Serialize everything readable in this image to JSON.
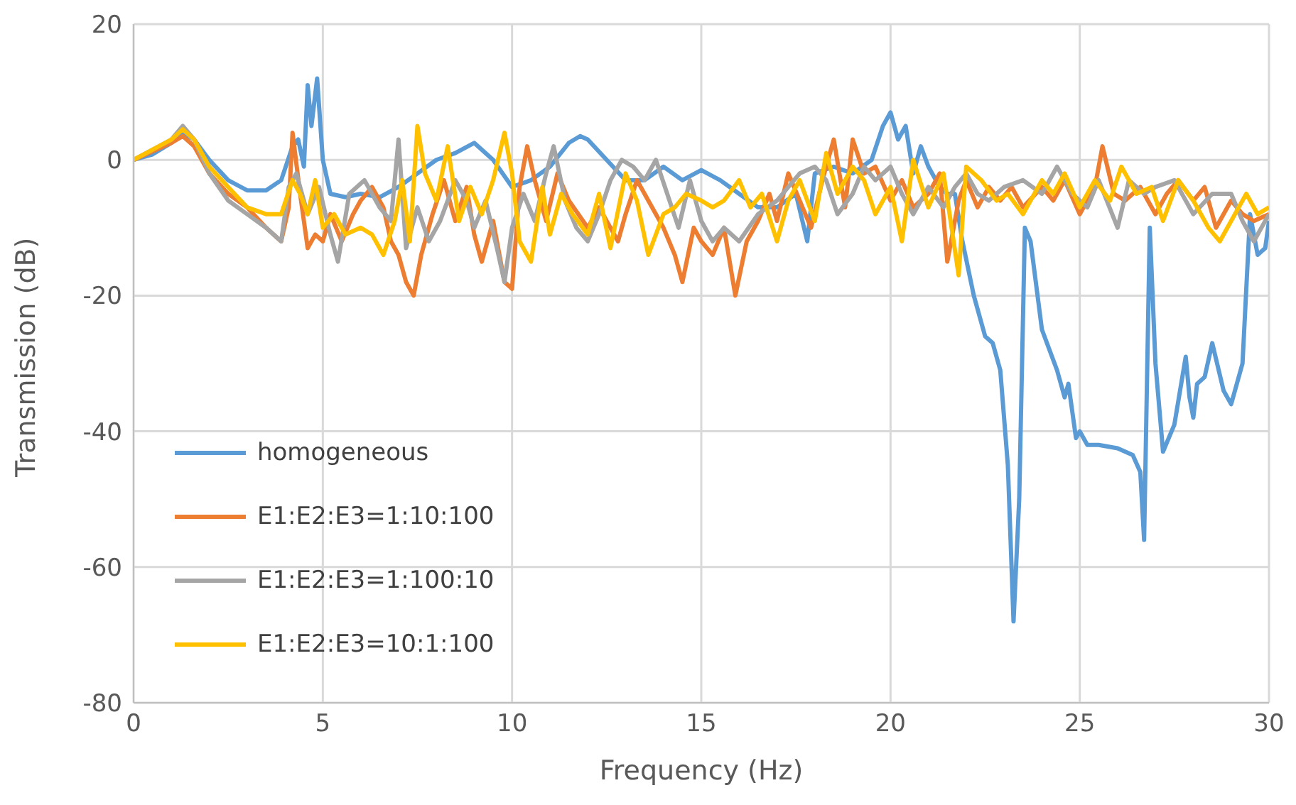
{
  "chart_data": {
    "type": "line",
    "xlabel": "Frequency (Hz)",
    "ylabel": "Transmission (dB)",
    "xlim": [
      0,
      30
    ],
    "xticks": [
      0,
      5,
      10,
      15,
      20,
      25,
      30
    ],
    "ylim": [
      -80,
      20
    ],
    "yticks": [
      -80,
      -60,
      -40,
      -20,
      0,
      20
    ],
    "grid": true,
    "legend": "bottom left",
    "marker": "none",
    "line_style": "solid",
    "series": [
      {
        "name": "homogeneous",
        "color": "#5b9bd5",
        "x": [
          0,
          0.5,
          1,
          1.3,
          1.6,
          2,
          2.5,
          3,
          3.5,
          3.9,
          4.2,
          4.35,
          4.5,
          4.6,
          4.7,
          4.85,
          5,
          5.2,
          5.6,
          6,
          6.5,
          7,
          7.5,
          8,
          8.5,
          9,
          9.5,
          10,
          10.5,
          11,
          11.5,
          11.8,
          12,
          12.5,
          13,
          13.5,
          14,
          14.5,
          15,
          15.5,
          16,
          16.5,
          17,
          17.5,
          17.8,
          18,
          18.5,
          19,
          19.5,
          19.8,
          20,
          20.2,
          20.4,
          20.6,
          20.8,
          21,
          21.3,
          21.5,
          21.7,
          21.9,
          22.2,
          22.5,
          22.7,
          22.9,
          23.1,
          23.25,
          23.4,
          23.55,
          23.7,
          24,
          24.4,
          24.6,
          24.7,
          24.9,
          25,
          25.2,
          25.5,
          26,
          26.4,
          26.6,
          26.7,
          26.85,
          27,
          27.2,
          27.5,
          27.8,
          27.9,
          28,
          28.1,
          28.3,
          28.5,
          28.8,
          29,
          29.3,
          29.5,
          29.7,
          29.9,
          30
        ],
        "values": [
          0,
          0.8,
          2.5,
          4,
          3,
          0,
          -3,
          -4.5,
          -4.5,
          -3,
          2,
          3,
          -1,
          11,
          5,
          12,
          0,
          -5,
          -5.5,
          -5,
          -5.5,
          -4,
          -2,
          0,
          1,
          2.5,
          0,
          -4,
          -3,
          -1,
          2.5,
          3.5,
          3,
          0,
          -3,
          -3,
          -1,
          -3,
          -1.5,
          -3,
          -5,
          -7,
          -7,
          -5,
          -12,
          -2,
          -1,
          -2,
          0,
          5,
          7,
          3,
          5,
          -2,
          2,
          -1,
          -4,
          -5,
          -5,
          -12,
          -20,
          -26,
          -27,
          -31,
          -45,
          -68,
          -50,
          -10,
          -12,
          -25,
          -31,
          -35,
          -33,
          -41,
          -40,
          -42,
          -42,
          -42.5,
          -43.5,
          -46,
          -56,
          -10,
          -30,
          -43,
          -39,
          -29,
          -35,
          -38,
          -33,
          -32,
          -27,
          -34,
          -36,
          -30,
          -8,
          -14,
          -13,
          -9
        ]
      },
      {
        "name": "E1:E2:E3=1:10:100",
        "color": "#ed7d31",
        "x": [
          0,
          1,
          1.3,
          1.6,
          2,
          2.5,
          3,
          3.5,
          3.9,
          4.1,
          4.2,
          4.4,
          4.6,
          4.8,
          5,
          5.2,
          5.5,
          5.8,
          6,
          6.3,
          6.6,
          6.8,
          7,
          7.2,
          7.4,
          7.6,
          7.9,
          8.2,
          8.5,
          8.8,
          9,
          9.2,
          9.5,
          9.8,
          10,
          10.2,
          10.4,
          10.6,
          10.9,
          11.2,
          11.5,
          12,
          12.3,
          12.8,
          13,
          13.3,
          13.6,
          14,
          14.3,
          14.5,
          14.8,
          15,
          15.3,
          15.6,
          15.9,
          16.2,
          16.5,
          16.8,
          17,
          17.3,
          17.6,
          17.9,
          18.2,
          18.5,
          18.8,
          19,
          19.3,
          19.6,
          20,
          20.3,
          20.6,
          21,
          21.3,
          21.5,
          21.8,
          22,
          22.3,
          22.6,
          22.9,
          23.2,
          23.5,
          24,
          24.3,
          24.6,
          25,
          25.4,
          25.6,
          25.9,
          26.2,
          26.6,
          27,
          27.3,
          27.6,
          28,
          28.3,
          28.6,
          29,
          29.3,
          29.6,
          30
        ],
        "values": [
          0,
          2.5,
          3.5,
          2,
          -2,
          -5,
          -7,
          -10,
          -12,
          -7,
          4,
          -5,
          -13,
          -11,
          -12,
          -8,
          -12,
          -8,
          -6,
          -4,
          -7,
          -12,
          -14,
          -18,
          -20,
          -14,
          -8,
          -3,
          -9,
          -4,
          -11,
          -15,
          -9,
          -18,
          -19,
          -4,
          2,
          -3,
          -9,
          -2,
          -6,
          -10,
          -7,
          -12,
          -8,
          -3,
          -6,
          -10,
          -14,
          -18,
          -10,
          -12,
          -14,
          -10,
          -20,
          -12,
          -9,
          -5,
          -9,
          -2,
          -6,
          -10,
          -3,
          3,
          -7,
          3,
          -2,
          -1,
          -6,
          -3,
          -7,
          -5,
          -2,
          -15,
          -6,
          -3,
          -7,
          -4,
          -6,
          -4,
          -7,
          -4,
          -6,
          -3,
          -8,
          -4,
          2,
          -5,
          -6,
          -4,
          -8,
          -5,
          -3,
          -6,
          -4,
          -10,
          -6,
          -8,
          -9,
          -8
        ]
      },
      {
        "name": "E1:E2:E3=1:100:10",
        "color": "#a5a5a5",
        "x": [
          0,
          1,
          1.3,
          1.6,
          2,
          2.5,
          3,
          3.5,
          3.9,
          4.1,
          4.3,
          4.6,
          4.9,
          5.2,
          5.4,
          5.7,
          6.1,
          6.5,
          6.8,
          7,
          7.2,
          7.5,
          7.8,
          8.1,
          8.5,
          8.8,
          9,
          9.3,
          9.6,
          9.8,
          10,
          10.3,
          10.6,
          10.9,
          11.1,
          11.4,
          11.7,
          12,
          12.3,
          12.6,
          12.9,
          13.2,
          13.5,
          13.8,
          14.1,
          14.4,
          14.7,
          15,
          15.3,
          15.6,
          16,
          16.5,
          17,
          17.3,
          17.6,
          18,
          18.3,
          18.6,
          19,
          19.3,
          19.6,
          20,
          20.3,
          20.6,
          21,
          21.4,
          21.7,
          22,
          22.3,
          22.6,
          23,
          23.5,
          24,
          24.4,
          24.8,
          25.2,
          25.5,
          26,
          26.3,
          26.7,
          27,
          27.5,
          28,
          28.5,
          29,
          29.3,
          29.6,
          30
        ],
        "values": [
          0,
          3,
          5,
          3,
          -2,
          -6,
          -8,
          -10,
          -12,
          -4,
          -2,
          -8,
          -4,
          -11,
          -15,
          -5,
          -3,
          -7,
          -9,
          3,
          -13,
          -7,
          -12,
          -9,
          -3,
          -6,
          -10,
          -6,
          -13,
          -18,
          -10,
          -5,
          -9,
          -2,
          2,
          -6,
          -10,
          -12,
          -8,
          -3,
          0,
          -1,
          -3,
          0,
          -5,
          -10,
          -3,
          -9,
          -12,
          -10,
          -12,
          -8,
          -6,
          -4,
          -2,
          -1,
          -3,
          -8,
          -5,
          -1,
          -3,
          -1,
          -5,
          -8,
          -4,
          -7,
          -4,
          -2,
          -5,
          -6,
          -4,
          -3,
          -5,
          -1,
          -5,
          -7,
          -3,
          -10,
          -3,
          -5,
          -4,
          -3,
          -8,
          -5,
          -5,
          -9,
          -12,
          -8
        ]
      },
      {
        "name": "E1:E2:E3=10:1:100",
        "color": "#ffc000",
        "x": [
          0,
          1,
          1.3,
          1.6,
          2,
          2.5,
          3,
          3.5,
          3.9,
          4.2,
          4.4,
          4.6,
          4.8,
          5,
          5.3,
          5.6,
          6,
          6.3,
          6.6,
          6.9,
          7.1,
          7.3,
          7.5,
          7.7,
          8,
          8.3,
          8.6,
          8.9,
          9.2,
          9.5,
          9.8,
          10,
          10.2,
          10.5,
          10.8,
          11,
          11.3,
          11.6,
          12,
          12.3,
          12.6,
          13,
          13.3,
          13.6,
          14,
          14.3,
          14.6,
          15,
          15.3,
          15.6,
          16,
          16.3,
          16.6,
          17,
          17.3,
          17.6,
          18,
          18.3,
          18.6,
          19,
          19.3,
          19.6,
          20,
          20.3,
          20.6,
          21,
          21.4,
          21.8,
          22,
          22.4,
          22.8,
          23.1,
          23.5,
          24,
          24.3,
          24.6,
          25,
          25.4,
          25.8,
          26.1,
          26.5,
          26.9,
          27.2,
          27.6,
          28,
          28.4,
          28.7,
          29,
          29.4,
          29.7,
          30
        ],
        "values": [
          0,
          3,
          4.5,
          3,
          -1,
          -4,
          -7,
          -8,
          -8,
          -3,
          -5,
          -8,
          -3,
          -10,
          -8,
          -11,
          -10,
          -11,
          -14,
          -9,
          -3,
          -12,
          5,
          -2,
          -6,
          2,
          -9,
          -4,
          -8,
          -3,
          4,
          -2,
          -12,
          -15,
          -4,
          -11,
          -5,
          -8,
          -11,
          -5,
          -13,
          -2,
          -6,
          -14,
          -8,
          -7,
          -5,
          -6,
          -7,
          -6,
          -3,
          -7,
          -5,
          -12,
          -6,
          -3,
          -9,
          1,
          -5,
          -1,
          -3,
          -8,
          -4,
          -12,
          0,
          -7,
          -2,
          -17,
          -1,
          -3,
          -6,
          -5,
          -8,
          -3,
          -5,
          -2,
          -7,
          -3,
          -6,
          -1,
          -5,
          -4,
          -9,
          -3,
          -6,
          -10,
          -12,
          -9,
          -5,
          -8,
          -7
        ]
      }
    ]
  }
}
